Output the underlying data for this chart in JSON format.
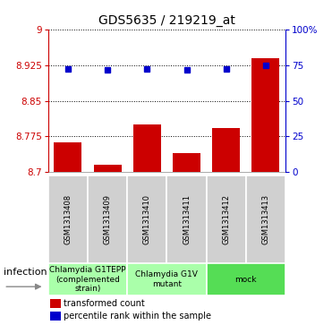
{
  "title": "GDS5635 / 219219_at",
  "samples": [
    "GSM1313408",
    "GSM1313409",
    "GSM1313410",
    "GSM1313411",
    "GSM1313412",
    "GSM1313413"
  ],
  "bar_values": [
    8.763,
    8.715,
    8.8,
    8.74,
    8.792,
    8.94
  ],
  "percentile_values": [
    72.0,
    71.5,
    72.5,
    71.5,
    72.5,
    74.5
  ],
  "ylim_left": [
    8.7,
    9.0
  ],
  "ylim_right": [
    0,
    100
  ],
  "yticks_left": [
    8.7,
    8.775,
    8.85,
    8.925,
    9.0
  ],
  "ytick_labels_left": [
    "8.7",
    "8.775",
    "8.85",
    "8.925",
    "9"
  ],
  "yticks_right": [
    0,
    25,
    50,
    75,
    100
  ],
  "ytick_labels_right": [
    "0",
    "25",
    "50",
    "75",
    "100%"
  ],
  "bar_color": "#cc0000",
  "dot_color": "#0000cc",
  "bar_width": 0.7,
  "groups": [
    {
      "label": "Chlamydia G1TEPP\n(complemented\nstrain)",
      "indices": [
        0,
        1
      ],
      "color": "#aaffaa"
    },
    {
      "label": "Chlamydia G1V\nmutant",
      "indices": [
        2,
        3
      ],
      "color": "#aaffaa"
    },
    {
      "label": "mock",
      "indices": [
        4,
        5
      ],
      "color": "#55dd55"
    }
  ],
  "group_factor_label": "infection",
  "legend_bar_label": "transformed count",
  "legend_dot_label": "percentile rank within the sample",
  "bg_color": "#d0d0d0",
  "plot_bg": "#ffffff",
  "dotted_line_color": "#000000",
  "title_fontsize": 10,
  "tick_fontsize": 7.5,
  "sample_fontsize": 6.0,
  "group_fontsize": 6.5,
  "legend_fontsize": 7
}
